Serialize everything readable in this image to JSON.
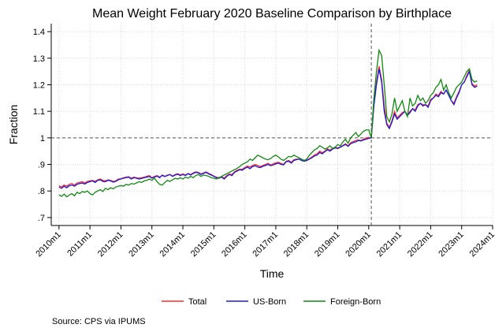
{
  "chart_data": {
    "type": "line",
    "title": "Mean Weight February 2020 Baseline Comparison by Birthplace",
    "x_label": "Time",
    "y_label": "Fraction",
    "source": "Source: CPS via IPUMS",
    "legend": "bottom",
    "grid": true,
    "yline": 1,
    "xline": 721,
    "xlim": [
      597,
      768
    ],
    "ylim": [
      0.67,
      1.43
    ],
    "xticks": [
      {
        "value": 600,
        "label": "2010m1"
      },
      {
        "value": 612,
        "label": "2011m1"
      },
      {
        "value": 624,
        "label": "2012m1"
      },
      {
        "value": 636,
        "label": "2013m1"
      },
      {
        "value": 648,
        "label": "2014m1"
      },
      {
        "value": 660,
        "label": "2015m1"
      },
      {
        "value": 672,
        "label": "2016m1"
      },
      {
        "value": 684,
        "label": "2017m1"
      },
      {
        "value": 696,
        "label": "2018m1"
      },
      {
        "value": 708,
        "label": "2019m1"
      },
      {
        "value": 720,
        "label": "2020m1"
      },
      {
        "value": 732,
        "label": "2021m1"
      },
      {
        "value": 744,
        "label": "2022m1"
      },
      {
        "value": 756,
        "label": "2023m1"
      },
      {
        "value": 768,
        "label": "2024m1"
      }
    ],
    "yticks": [
      {
        "value": 0.7,
        "label": ".7"
      },
      {
        "value": 0.8,
        "label": ".8"
      },
      {
        "value": 0.9,
        "label": ".9"
      },
      1,
      1.1,
      1.2,
      1.3,
      1.4
    ],
    "x": [
      600,
      601,
      602,
      603,
      604,
      605,
      606,
      607,
      608,
      609,
      610,
      611,
      612,
      613,
      614,
      615,
      616,
      617,
      618,
      619,
      620,
      621,
      622,
      623,
      624,
      625,
      626,
      627,
      628,
      629,
      630,
      631,
      632,
      633,
      634,
      635,
      636,
      637,
      638,
      639,
      640,
      641,
      642,
      643,
      644,
      645,
      646,
      647,
      648,
      649,
      650,
      651,
      652,
      653,
      654,
      655,
      656,
      657,
      658,
      659,
      660,
      661,
      662,
      663,
      664,
      665,
      666,
      667,
      668,
      669,
      670,
      671,
      672,
      673,
      674,
      675,
      676,
      677,
      678,
      679,
      680,
      681,
      682,
      683,
      684,
      685,
      686,
      687,
      688,
      689,
      690,
      691,
      692,
      693,
      694,
      695,
      696,
      697,
      698,
      699,
      700,
      701,
      702,
      703,
      704,
      705,
      706,
      707,
      708,
      709,
      710,
      711,
      712,
      713,
      714,
      715,
      716,
      717,
      718,
      719,
      720,
      721,
      722,
      723,
      724,
      725,
      726,
      727,
      728,
      729,
      730,
      731,
      732,
      733,
      734,
      735,
      736,
      737,
      738,
      739,
      740,
      741,
      742,
      743,
      744,
      745,
      746,
      747,
      748,
      749,
      750,
      751,
      752,
      753,
      754,
      755,
      756,
      757,
      758,
      759,
      760,
      761,
      762
    ],
    "series": [
      {
        "name": "Total",
        "color": "#ff2a2a",
        "values": [
          0.82,
          0.815,
          0.822,
          0.818,
          0.825,
          0.828,
          0.822,
          0.83,
          0.832,
          0.835,
          0.83,
          0.836,
          0.838,
          0.84,
          0.836,
          0.842,
          0.845,
          0.84,
          0.838,
          0.842,
          0.84,
          0.836,
          0.838,
          0.845,
          0.846,
          0.85,
          0.852,
          0.854,
          0.848,
          0.852,
          0.85,
          0.848,
          0.85,
          0.852,
          0.855,
          0.858,
          0.85,
          0.855,
          0.858,
          0.852,
          0.858,
          0.854,
          0.86,
          0.862,
          0.856,
          0.862,
          0.865,
          0.86,
          0.864,
          0.86,
          0.866,
          0.862,
          0.868,
          0.872,
          0.87,
          0.864,
          0.868,
          0.872,
          0.866,
          0.862,
          0.856,
          0.852,
          0.85,
          0.854,
          0.848,
          0.858,
          0.864,
          0.862,
          0.872,
          0.878,
          0.882,
          0.882,
          0.888,
          0.894,
          0.89,
          0.896,
          0.9,
          0.896,
          0.892,
          0.896,
          0.9,
          0.904,
          0.898,
          0.902,
          0.906,
          0.908,
          0.904,
          0.9,
          0.912,
          0.915,
          0.908,
          0.918,
          0.92,
          0.92,
          0.915,
          0.912,
          0.916,
          0.922,
          0.928,
          0.936,
          0.94,
          0.95,
          0.944,
          0.95,
          0.958,
          0.954,
          0.96,
          0.964,
          0.962,
          0.966,
          0.972,
          0.978,
          0.97,
          0.982,
          0.986,
          0.99,
          0.992,
          0.99,
          0.995,
          1.0,
          1.002,
          1.0,
          1.13,
          1.21,
          1.27,
          1.22,
          1.12,
          1.055,
          1.04,
          1.065,
          1.1,
          1.075,
          1.085,
          1.095,
          1.1,
          1.085,
          1.1,
          1.11,
          1.105,
          1.125,
          1.13,
          1.125,
          1.125,
          1.12,
          1.145,
          1.15,
          1.165,
          1.16,
          1.175,
          1.165,
          1.18,
          1.16,
          1.14,
          1.13,
          1.155,
          1.175,
          1.2,
          1.21,
          1.235,
          1.255,
          1.205,
          1.195,
          1.2
        ]
      },
      {
        "name": "US-Born",
        "color": "#1a1adb",
        "values": [
          0.815,
          0.81,
          0.818,
          0.812,
          0.82,
          0.822,
          0.818,
          0.825,
          0.828,
          0.83,
          0.826,
          0.832,
          0.835,
          0.838,
          0.832,
          0.84,
          0.842,
          0.836,
          0.835,
          0.84,
          0.838,
          0.833,
          0.836,
          0.842,
          0.845,
          0.848,
          0.85,
          0.852,
          0.845,
          0.85,
          0.848,
          0.845,
          0.847,
          0.85,
          0.852,
          0.855,
          0.848,
          0.852,
          0.856,
          0.85,
          0.86,
          0.855,
          0.858,
          0.862,
          0.855,
          0.86,
          0.863,
          0.858,
          0.862,
          0.858,
          0.865,
          0.86,
          0.866,
          0.87,
          0.868,
          0.862,
          0.866,
          0.87,
          0.864,
          0.86,
          0.855,
          0.85,
          0.848,
          0.852,
          0.845,
          0.855,
          0.862,
          0.858,
          0.87,
          0.875,
          0.88,
          0.878,
          0.885,
          0.89,
          0.884,
          0.892,
          0.895,
          0.89,
          0.888,
          0.893,
          0.896,
          0.9,
          0.895,
          0.898,
          0.902,
          0.905,
          0.9,
          0.898,
          0.91,
          0.912,
          0.905,
          0.915,
          0.918,
          0.92,
          0.915,
          0.912,
          0.915,
          0.92,
          0.925,
          0.932,
          0.935,
          0.945,
          0.94,
          0.948,
          0.955,
          0.95,
          0.958,
          0.962,
          0.96,
          0.965,
          0.97,
          0.975,
          0.968,
          0.978,
          0.982,
          0.985,
          0.99,
          0.988,
          0.992,
          0.995,
          0.998,
          1.0,
          1.12,
          1.2,
          1.26,
          1.21,
          1.1,
          1.05,
          1.035,
          1.06,
          1.09,
          1.07,
          1.08,
          1.09,
          1.1,
          1.085,
          1.095,
          1.11,
          1.1,
          1.12,
          1.13,
          1.12,
          1.125,
          1.115,
          1.14,
          1.15,
          1.16,
          1.155,
          1.17,
          1.165,
          1.18,
          1.16,
          1.14,
          1.125,
          1.15,
          1.17,
          1.2,
          1.21,
          1.23,
          1.25,
          1.2,
          1.19,
          1.195
        ]
      },
      {
        "name": "Foreign-Born",
        "color": "#0f8a0f",
        "values": [
          0.785,
          0.78,
          0.788,
          0.778,
          0.785,
          0.79,
          0.782,
          0.795,
          0.79,
          0.798,
          0.795,
          0.8,
          0.79,
          0.785,
          0.795,
          0.8,
          0.805,
          0.798,
          0.81,
          0.805,
          0.812,
          0.808,
          0.815,
          0.818,
          0.82,
          0.818,
          0.825,
          0.822,
          0.828,
          0.826,
          0.83,
          0.835,
          0.832,
          0.838,
          0.84,
          0.845,
          0.84,
          0.848,
          0.835,
          0.825,
          0.822,
          0.832,
          0.84,
          0.836,
          0.842,
          0.848,
          0.845,
          0.85,
          0.845,
          0.852,
          0.848,
          0.855,
          0.85,
          0.858,
          0.862,
          0.855,
          0.86,
          0.858,
          0.855,
          0.85,
          0.848,
          0.845,
          0.85,
          0.855,
          0.86,
          0.865,
          0.87,
          0.875,
          0.88,
          0.885,
          0.892,
          0.9,
          0.905,
          0.91,
          0.92,
          0.915,
          0.925,
          0.935,
          0.93,
          0.925,
          0.92,
          0.918,
          0.922,
          0.93,
          0.935,
          0.928,
          0.92,
          0.915,
          0.922,
          0.93,
          0.928,
          0.935,
          0.93,
          0.925,
          0.92,
          0.915,
          0.92,
          0.935,
          0.945,
          0.955,
          0.96,
          0.97,
          0.965,
          0.958,
          0.962,
          0.97,
          0.96,
          0.965,
          0.975,
          0.97,
          0.985,
          0.995,
          0.98,
          1.0,
          1.01,
          1.02,
          1.005,
          1.015,
          1.025,
          1.03,
          1.03,
          1.0,
          1.15,
          1.25,
          1.33,
          1.31,
          1.2,
          1.08,
          1.06,
          1.09,
          1.15,
          1.1,
          1.12,
          1.14,
          1.1,
          1.08,
          1.15,
          1.12,
          1.13,
          1.16,
          1.14,
          1.15,
          1.13,
          1.14,
          1.16,
          1.17,
          1.19,
          1.2,
          1.22,
          1.18,
          1.2,
          1.17,
          1.15,
          1.17,
          1.19,
          1.2,
          1.21,
          1.23,
          1.25,
          1.26,
          1.22,
          1.21,
          1.215
        ]
      }
    ]
  }
}
